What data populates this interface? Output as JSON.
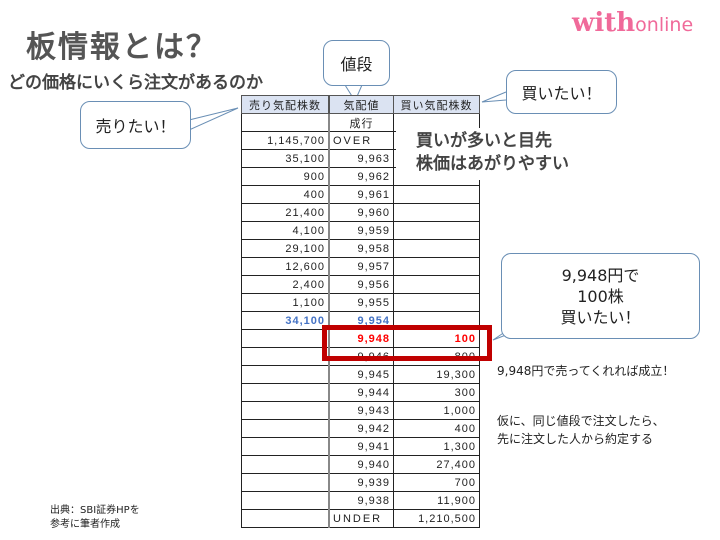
{
  "title": "板情報とは？",
  "subtitle": "どの価格にいくら注文があるのか",
  "logo": {
    "main": "with",
    "sub": "online"
  },
  "callouts": {
    "price": "値段",
    "buy": "買いたい！",
    "sell": "売りたい！",
    "order_line1": "9,948円で",
    "order_line2": "100株",
    "order_line3": "買いたい！"
  },
  "overlay": {
    "line1": "買いが多いと目先",
    "line2": "株価はあがりやすい"
  },
  "notes": {
    "match": "9,948円で売ってくれれば成立！",
    "rule_line1": "仮に、同じ値段で注文したら、",
    "rule_line2": "先に注文した人から約定する"
  },
  "source": {
    "line1": "出典：SBI証券HPを",
    "line2": "参考に筆者作成"
  },
  "table": {
    "headers": [
      "売り気配株数",
      "気配値",
      "買い気配株数"
    ],
    "rows": [
      [
        "",
        "成行",
        ""
      ],
      [
        "1,145,700",
        "OVER",
        ""
      ],
      [
        "35,100",
        "9,963",
        ""
      ],
      [
        "900",
        "9,962",
        ""
      ],
      [
        "400",
        "9,961",
        ""
      ],
      [
        "21,400",
        "9,960",
        ""
      ],
      [
        "4,100",
        "9,959",
        ""
      ],
      [
        "29,100",
        "9,958",
        ""
      ],
      [
        "12,600",
        "9,957",
        ""
      ],
      [
        "2,400",
        "9,956",
        ""
      ],
      [
        "1,100",
        "9,955",
        ""
      ],
      [
        "34,100",
        "9,954",
        ""
      ],
      [
        "",
        "9,948",
        "100"
      ],
      [
        "",
        "9,946",
        "800"
      ],
      [
        "",
        "9,945",
        "19,300"
      ],
      [
        "",
        "9,944",
        "300"
      ],
      [
        "",
        "9,943",
        "1,000"
      ],
      [
        "",
        "9,942",
        "400"
      ],
      [
        "",
        "9,941",
        "1,300"
      ],
      [
        "",
        "9,940",
        "27,400"
      ],
      [
        "",
        "9,939",
        "700"
      ],
      [
        "",
        "9,938",
        "11,900"
      ],
      [
        "",
        "UNDER",
        "1,210,500"
      ]
    ]
  },
  "colors": {
    "best_ask": "#4472c4",
    "highlight": "#ff0000",
    "highlight_box": "#c00000",
    "header_bg": "#dbe3f2",
    "logo": "#f06a9a"
  }
}
